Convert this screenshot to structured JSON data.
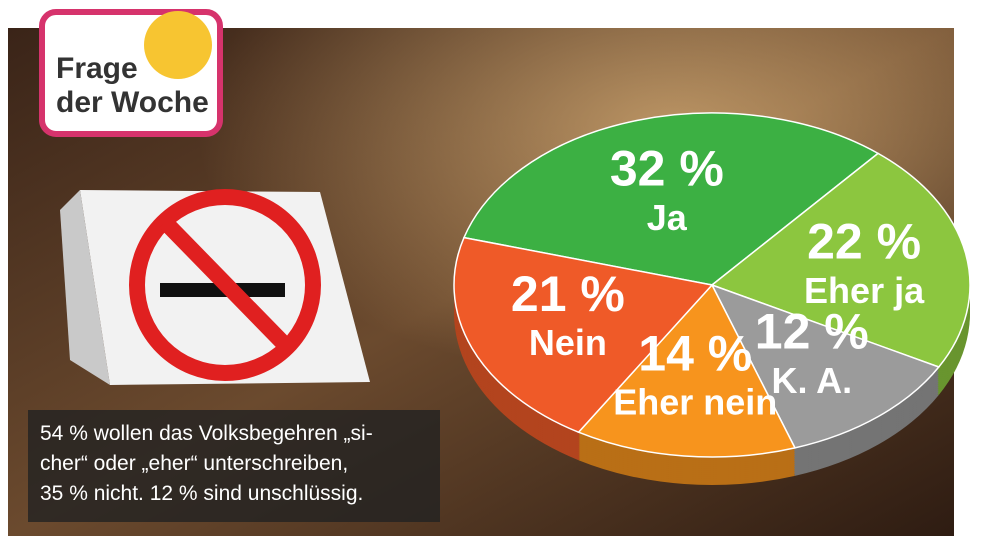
{
  "badge": {
    "lines": [
      "Frage",
      "der Woche"
    ]
  },
  "caption": {
    "lines": [
      "54 % wollen das Volksbegehren „si-",
      "cher“ oder „eher“ unterschreiben,",
      "35 % nicht. 12 % sind unschlüssig."
    ]
  },
  "chart_data": {
    "type": "pie",
    "categories": [
      "Ja",
      "Eher ja",
      "K. A.",
      "Eher nein",
      "Nein"
    ],
    "values": [
      32,
      22,
      12,
      14,
      21
    ],
    "value_labels": [
      "32 %",
      "22 %",
      "12 %",
      "14 %",
      "21 %"
    ],
    "colors": [
      "#3cb043",
      "#8cc63f",
      "#9b9b9b",
      "#f7941d",
      "#ef5a28"
    ]
  }
}
